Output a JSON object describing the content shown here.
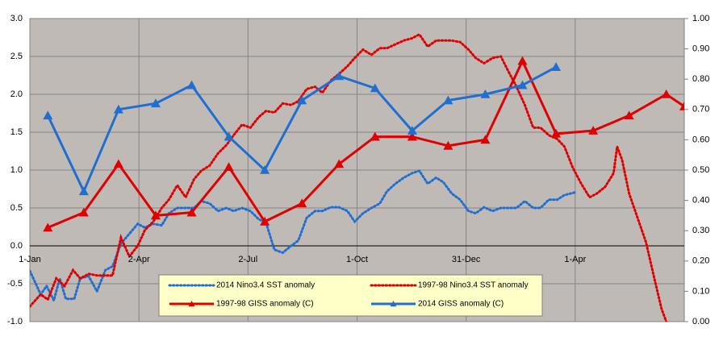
{
  "chart_data": {
    "type": "line",
    "xlim": [
      0,
      546
    ],
    "xticks": [
      {
        "value": 0,
        "label": "1-Jan"
      },
      {
        "value": 91,
        "label": "2-Apr"
      },
      {
        "value": 182,
        "label": "2-Jul"
      },
      {
        "value": 273,
        "label": "1-Oct"
      },
      {
        "value": 364,
        "label": "31-Dec"
      },
      {
        "value": 455,
        "label": "1-Apr"
      }
    ],
    "ylim": [
      -1,
      3
    ],
    "yticks": [
      {
        "value": -1,
        "label": "-1.0"
      },
      {
        "value": -0.5,
        "label": "-0.5"
      },
      {
        "value": 0,
        "label": "0.0"
      },
      {
        "value": 0.5,
        "label": "0.5"
      },
      {
        "value": 1,
        "label": "1.0"
      },
      {
        "value": 1.5,
        "label": "1.5"
      },
      {
        "value": 2,
        "label": "2.0"
      },
      {
        "value": 2.5,
        "label": "2.5"
      },
      {
        "value": 3,
        "label": "3.0"
      }
    ],
    "y2lim": [
      0,
      1
    ],
    "y2ticks": [
      {
        "value": 0,
        "label": "0.00"
      },
      {
        "value": 0.1,
        "label": "0.10"
      },
      {
        "value": 0.2,
        "label": "0.20"
      },
      {
        "value": 0.3,
        "label": "0.30"
      },
      {
        "value": 0.4,
        "label": "0.40"
      },
      {
        "value": 0.5,
        "label": "0.50"
      },
      {
        "value": 0.6,
        "label": "0.60"
      },
      {
        "value": 0.7,
        "label": "0.70"
      },
      {
        "value": 0.8,
        "label": "0.80"
      },
      {
        "value": 0.9,
        "label": "0.90"
      },
      {
        "value": 1,
        "label": "1.00"
      }
    ],
    "grid": true,
    "series": [
      {
        "name": "2014 Nino3.4 SST anomaly",
        "color": "#1f6fd0",
        "style": "dotted",
        "axis": "y",
        "x": [
          0,
          9,
          14,
          20,
          25,
          30,
          37,
          42,
          49,
          56,
          63,
          69,
          76,
          83,
          90,
          96,
          103,
          110,
          116,
          123,
          130,
          137,
          143,
          150,
          157,
          164,
          170,
          177,
          184,
          191,
          197,
          204,
          211,
          218,
          224,
          231,
          238,
          244,
          251,
          258,
          265,
          271,
          278,
          285,
          292,
          298,
          305,
          312,
          319,
          325,
          332,
          339,
          345,
          352,
          359,
          366,
          372,
          379,
          386,
          393,
          399,
          406,
          413,
          420,
          426,
          433,
          440,
          446,
          456
        ],
        "values": [
          -0.33,
          -0.64,
          -0.53,
          -0.72,
          -0.43,
          -0.7,
          -0.7,
          -0.43,
          -0.4,
          -0.6,
          -0.32,
          -0.27,
          0.03,
          0.16,
          0.29,
          0.24,
          0.29,
          0.27,
          0.43,
          0.5,
          0.5,
          0.5,
          0.59,
          0.56,
          0.46,
          0.5,
          0.46,
          0.5,
          0.46,
          0.35,
          0.31,
          -0.05,
          -0.09,
          0,
          0.07,
          0.37,
          0.46,
          0.46,
          0.51,
          0.51,
          0.46,
          0.32,
          0.43,
          0.5,
          0.56,
          0.72,
          0.82,
          0.9,
          0.96,
          0.99,
          0.82,
          0.9,
          0.84,
          0.69,
          0.61,
          0.46,
          0.43,
          0.51,
          0.46,
          0.5,
          0.5,
          0.5,
          0.59,
          0.5,
          0.5,
          0.61,
          0.61,
          0.67,
          0.71
        ]
      },
      {
        "name": "1997-98 Nino3.4 SST anomaly",
        "color": "#e00000",
        "style": "dotted",
        "axis": "y",
        "x": [
          0,
          9,
          15,
          22,
          29,
          36,
          42,
          49,
          56,
          63,
          69,
          76,
          83,
          90,
          96,
          103,
          110,
          116,
          123,
          130,
          137,
          143,
          150,
          157,
          164,
          170,
          177,
          184,
          191,
          197,
          204,
          211,
          218,
          224,
          231,
          238,
          244,
          251,
          258,
          265,
          271,
          278,
          285,
          292,
          298,
          305,
          312,
          319,
          325,
          332,
          339,
          345,
          352,
          359,
          366,
          372,
          379,
          386,
          393,
          399,
          406,
          413,
          420,
          426,
          433,
          440,
          446,
          453,
          460,
          467,
          473,
          480,
          487,
          490,
          494,
          500,
          507,
          514,
          521,
          527,
          531
        ],
        "values": [
          -0.8,
          -0.64,
          -0.71,
          -0.43,
          -0.53,
          -0.32,
          -0.43,
          -0.37,
          -0.39,
          -0.39,
          -0.39,
          0.11,
          -0.14,
          0,
          0.21,
          0.32,
          0.5,
          0.61,
          0.8,
          0.64,
          0.88,
          0.99,
          1.06,
          1.22,
          1.33,
          1.46,
          1.6,
          1.56,
          1.7,
          1.78,
          1.76,
          1.88,
          1.86,
          1.91,
          2.07,
          2.1,
          2.02,
          2.18,
          2.27,
          2.37,
          2.48,
          2.59,
          2.52,
          2.61,
          2.61,
          2.66,
          2.71,
          2.74,
          2.79,
          2.63,
          2.71,
          2.71,
          2.71,
          2.69,
          2.59,
          2.48,
          2.41,
          2.48,
          2.5,
          2.31,
          2.1,
          1.86,
          1.56,
          1.56,
          1.46,
          1.41,
          1.31,
          1.03,
          0.82,
          0.64,
          0.69,
          0.78,
          0.96,
          1.31,
          1.14,
          0.69,
          0.37,
          0.05,
          -0.43,
          -0.83,
          -1
        ]
      },
      {
        "name": "1997-98 GISS anomaly (C)",
        "color": "#e00000",
        "style": "solid",
        "marker": "triangle",
        "axis": "y2",
        "x": [
          15,
          45,
          74,
          105,
          135,
          166,
          196,
          227,
          258,
          288,
          319,
          349,
          380,
          411,
          439,
          470,
          500,
          531,
          546
        ],
        "values": [
          0.31,
          0.36,
          0.52,
          0.35,
          0.36,
          0.51,
          0.33,
          0.39,
          0.52,
          0.61,
          0.61,
          0.58,
          0.6,
          0.86,
          0.62,
          0.63,
          0.68,
          0.75,
          0.71
        ]
      },
      {
        "name": "2014 GISS anomaly (C)",
        "color": "#1f6fd0",
        "style": "solid",
        "marker": "triangle",
        "axis": "y2",
        "x": [
          15,
          45,
          74,
          105,
          135,
          166,
          196,
          227,
          258,
          288,
          319,
          349,
          380,
          411,
          439
        ],
        "values": [
          0.68,
          0.43,
          0.7,
          0.72,
          0.78,
          0.61,
          0.5,
          0.73,
          0.81,
          0.77,
          0.63,
          0.73,
          0.75,
          0.78,
          0.84
        ]
      }
    ]
  }
}
